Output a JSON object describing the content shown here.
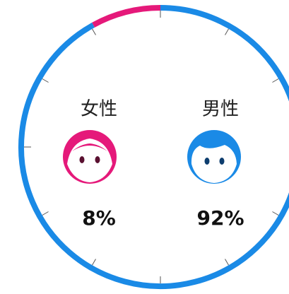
{
  "chart_data": {
    "type": "donut",
    "categories": [
      "女性",
      "男性"
    ],
    "values": [
      8,
      92
    ],
    "value_labels": [
      "8%",
      "92%"
    ],
    "colors": [
      "#e5197a",
      "#1a8ae6"
    ]
  }
}
